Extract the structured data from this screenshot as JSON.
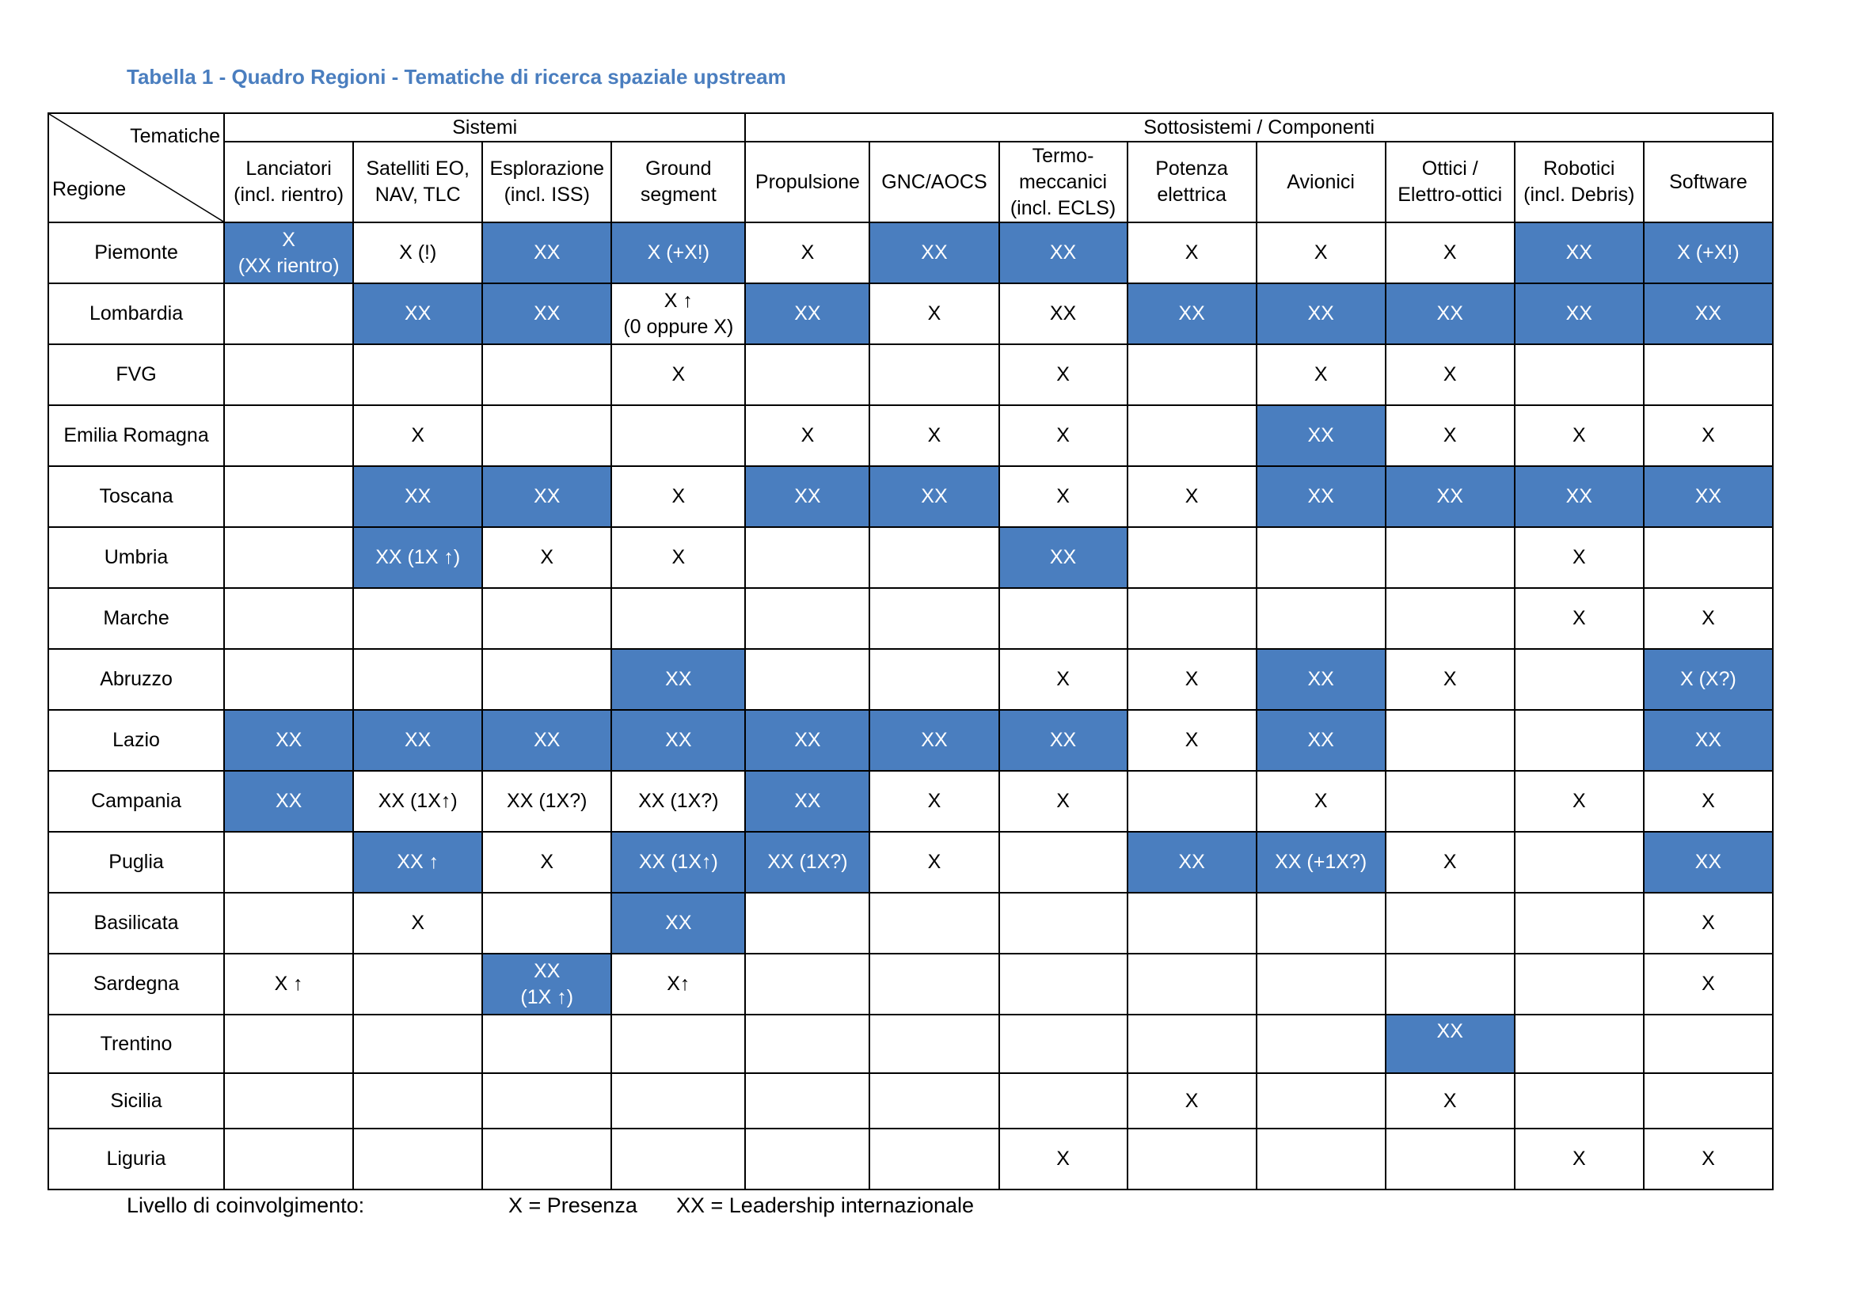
{
  "title": "Tabella 1 - Quadro Regioni - Tematiche di ricerca spaziale upstream",
  "colors": {
    "highlight": "#4a7ebf",
    "title": "#4a7ebf",
    "mark": "#808080"
  },
  "header": {
    "corner_top": "Tematiche",
    "corner_bottom": "Regione",
    "groups": [
      {
        "label": "Sistemi",
        "span": 4
      },
      {
        "label": "Sottosistemi / Componenti",
        "span": 8
      }
    ],
    "columns": [
      "Lanciatori\n(incl. rientro)",
      "Satelliti EO,\nNAV, TLC",
      "Esplorazione\n(incl. ISS)",
      "Ground\nsegment",
      "Propulsione",
      "GNC/AOCS",
      "Termo-\nmeccanici\n(incl. ECLS)",
      "Potenza\nelettrica",
      "Avionici",
      "Ottici /\nElettro-ottici",
      "Robotici\n(incl. Debris)",
      "Software"
    ]
  },
  "rows": [
    {
      "region": "Piemonte",
      "cells": [
        {
          "v": "X\n(XX rientro)",
          "hl": true
        },
        {
          "v": "X (!)",
          "hl": false
        },
        {
          "v": "XX",
          "hl": true
        },
        {
          "v": "X (+X!)",
          "hl": true
        },
        {
          "v": "X",
          "hl": false
        },
        {
          "v": "XX",
          "hl": true
        },
        {
          "v": "XX",
          "hl": true
        },
        {
          "v": "X",
          "hl": false
        },
        {
          "v": "X",
          "hl": false
        },
        {
          "v": "X",
          "hl": false
        },
        {
          "v": "XX",
          "hl": true
        },
        {
          "v": "X (+X!)",
          "hl": true
        }
      ]
    },
    {
      "region": "Lombardia",
      "cells": [
        {
          "v": "",
          "hl": false
        },
        {
          "v": "XX",
          "hl": true
        },
        {
          "v": "XX",
          "hl": true
        },
        {
          "v": "X ↑\n(0 oppure X)",
          "hl": false
        },
        {
          "v": "XX",
          "hl": true
        },
        {
          "v": "X",
          "hl": false
        },
        {
          "v": "XX",
          "hl": false
        },
        {
          "v": "XX",
          "hl": true
        },
        {
          "v": "XX",
          "hl": true
        },
        {
          "v": "XX",
          "hl": true
        },
        {
          "v": "XX",
          "hl": true
        },
        {
          "v": "XX",
          "hl": true
        }
      ]
    },
    {
      "region": "FVG",
      "cells": [
        {
          "v": "",
          "hl": false
        },
        {
          "v": "",
          "hl": false
        },
        {
          "v": "",
          "hl": false
        },
        {
          "v": "X",
          "hl": false
        },
        {
          "v": "",
          "hl": false
        },
        {
          "v": "",
          "hl": false
        },
        {
          "v": "X",
          "hl": false
        },
        {
          "v": "",
          "hl": false
        },
        {
          "v": "X",
          "hl": false
        },
        {
          "v": "X",
          "hl": false
        },
        {
          "v": "",
          "hl": false
        },
        {
          "v": "",
          "hl": false
        }
      ]
    },
    {
      "region": "Emilia Romagna",
      "cells": [
        {
          "v": "",
          "hl": false
        },
        {
          "v": "X",
          "hl": false
        },
        {
          "v": "",
          "hl": false
        },
        {
          "v": "",
          "hl": false
        },
        {
          "v": "X",
          "hl": false
        },
        {
          "v": "X",
          "hl": false
        },
        {
          "v": "X",
          "hl": false
        },
        {
          "v": "",
          "hl": false
        },
        {
          "v": "XX",
          "hl": true
        },
        {
          "v": "X",
          "hl": false
        },
        {
          "v": "X",
          "hl": false
        },
        {
          "v": "X",
          "hl": false
        }
      ]
    },
    {
      "region": "Toscana",
      "cells": [
        {
          "v": "",
          "hl": false
        },
        {
          "v": "XX",
          "hl": true
        },
        {
          "v": "XX",
          "hl": true
        },
        {
          "v": "X",
          "hl": false
        },
        {
          "v": "XX",
          "hl": true
        },
        {
          "v": "XX",
          "hl": true
        },
        {
          "v": "X",
          "hl": false
        },
        {
          "v": "X",
          "hl": false
        },
        {
          "v": "XX",
          "hl": true
        },
        {
          "v": "XX",
          "hl": true
        },
        {
          "v": "XX",
          "hl": true
        },
        {
          "v": "XX",
          "hl": true
        }
      ]
    },
    {
      "region": "Umbria",
      "cells": [
        {
          "v": "",
          "hl": false
        },
        {
          "v": "XX (1X ↑)",
          "hl": true
        },
        {
          "v": "X",
          "hl": false
        },
        {
          "v": "X",
          "hl": false
        },
        {
          "v": "",
          "hl": false
        },
        {
          "v": "",
          "hl": false
        },
        {
          "v": "XX",
          "hl": true
        },
        {
          "v": "",
          "hl": false
        },
        {
          "v": "",
          "hl": false
        },
        {
          "v": "",
          "hl": false
        },
        {
          "v": "X",
          "hl": false
        },
        {
          "v": "",
          "hl": false
        }
      ]
    },
    {
      "region": "Marche",
      "cells": [
        {
          "v": "",
          "hl": false
        },
        {
          "v": "",
          "hl": false
        },
        {
          "v": "",
          "hl": false
        },
        {
          "v": "",
          "hl": false
        },
        {
          "v": "",
          "hl": false
        },
        {
          "v": "",
          "hl": false
        },
        {
          "v": "",
          "hl": false
        },
        {
          "v": "",
          "hl": false
        },
        {
          "v": "",
          "hl": false
        },
        {
          "v": "",
          "hl": false
        },
        {
          "v": "X",
          "hl": false
        },
        {
          "v": "X",
          "hl": false
        }
      ]
    },
    {
      "region": "Abruzzo",
      "cells": [
        {
          "v": "",
          "hl": false
        },
        {
          "v": "",
          "hl": false
        },
        {
          "v": "",
          "hl": false
        },
        {
          "v": "XX",
          "hl": true
        },
        {
          "v": "",
          "hl": false
        },
        {
          "v": "",
          "hl": false
        },
        {
          "v": "X",
          "hl": false
        },
        {
          "v": "X",
          "hl": false
        },
        {
          "v": "XX",
          "hl": true
        },
        {
          "v": "X",
          "hl": false
        },
        {
          "v": "",
          "hl": false
        },
        {
          "v": "X (X?)",
          "hl": true
        }
      ]
    },
    {
      "region": "Lazio",
      "cells": [
        {
          "v": "XX",
          "hl": true
        },
        {
          "v": "XX",
          "hl": true
        },
        {
          "v": "XX",
          "hl": true
        },
        {
          "v": "XX",
          "hl": true
        },
        {
          "v": "XX",
          "hl": true
        },
        {
          "v": "XX",
          "hl": true
        },
        {
          "v": "XX",
          "hl": true
        },
        {
          "v": "X",
          "hl": false
        },
        {
          "v": "XX",
          "hl": true
        },
        {
          "v": "",
          "hl": false
        },
        {
          "v": "",
          "hl": false
        },
        {
          "v": "XX",
          "hl": true
        }
      ]
    },
    {
      "region": "Campania",
      "cells": [
        {
          "v": "XX",
          "hl": true
        },
        {
          "v": "XX (1X↑)",
          "hl": false
        },
        {
          "v": "XX (1X?)",
          "hl": false
        },
        {
          "v": "XX (1X?)",
          "hl": false
        },
        {
          "v": "XX",
          "hl": true
        },
        {
          "v": "X",
          "hl": false
        },
        {
          "v": "X",
          "hl": false
        },
        {
          "v": "",
          "hl": false
        },
        {
          "v": "X",
          "hl": false
        },
        {
          "v": "",
          "hl": false
        },
        {
          "v": "X",
          "hl": false
        },
        {
          "v": "X",
          "hl": false
        }
      ]
    },
    {
      "region": "Puglia",
      "cells": [
        {
          "v": "",
          "hl": false
        },
        {
          "v": "XX ↑",
          "hl": true
        },
        {
          "v": "X",
          "hl": false
        },
        {
          "v": "XX (1X↑)",
          "hl": true
        },
        {
          "v": "XX (1X?)",
          "hl": true
        },
        {
          "v": "X",
          "hl": false
        },
        {
          "v": "",
          "hl": false
        },
        {
          "v": "XX",
          "hl": true
        },
        {
          "v": "XX (+1X?)",
          "hl": true
        },
        {
          "v": "X",
          "hl": false
        },
        {
          "v": "",
          "hl": false
        },
        {
          "v": "XX",
          "hl": true
        }
      ]
    },
    {
      "region": "Basilicata",
      "cells": [
        {
          "v": "",
          "hl": false
        },
        {
          "v": "X",
          "hl": false
        },
        {
          "v": "",
          "hl": false
        },
        {
          "v": "XX",
          "hl": true
        },
        {
          "v": "",
          "hl": false
        },
        {
          "v": "",
          "hl": false
        },
        {
          "v": "",
          "hl": false
        },
        {
          "v": "",
          "hl": false
        },
        {
          "v": "",
          "hl": false
        },
        {
          "v": "",
          "hl": false
        },
        {
          "v": "",
          "hl": false
        },
        {
          "v": "X",
          "hl": false
        }
      ]
    },
    {
      "region": "Sardegna",
      "cells": [
        {
          "v": "X ↑",
          "hl": false
        },
        {
          "v": "",
          "hl": false
        },
        {
          "v": "XX\n(1X ↑)",
          "hl": true
        },
        {
          "v": "X↑",
          "hl": false
        },
        {
          "v": "",
          "hl": false
        },
        {
          "v": "",
          "hl": false
        },
        {
          "v": "",
          "hl": false
        },
        {
          "v": "",
          "hl": false
        },
        {
          "v": "",
          "hl": false
        },
        {
          "v": "",
          "hl": false
        },
        {
          "v": "",
          "hl": false
        },
        {
          "v": "X",
          "hl": false
        }
      ]
    },
    {
      "region": "Trentino",
      "cells": [
        {
          "v": "",
          "hl": false
        },
        {
          "v": "",
          "hl": false
        },
        {
          "v": "",
          "hl": false
        },
        {
          "v": "",
          "hl": false
        },
        {
          "v": "",
          "hl": false
        },
        {
          "v": "",
          "hl": false
        },
        {
          "v": "",
          "hl": false
        },
        {
          "v": "",
          "hl": false
        },
        {
          "v": "",
          "hl": false
        },
        {
          "v": "XX",
          "hl": true,
          "top": true
        },
        {
          "v": "",
          "hl": false
        },
        {
          "v": "",
          "hl": false
        }
      ]
    },
    {
      "region": "Sicilia",
      "cells": [
        {
          "v": "",
          "hl": false
        },
        {
          "v": "",
          "hl": false
        },
        {
          "v": "",
          "hl": false
        },
        {
          "v": "",
          "hl": false
        },
        {
          "v": "",
          "hl": false
        },
        {
          "v": "",
          "hl": false
        },
        {
          "v": "",
          "hl": false
        },
        {
          "v": "X",
          "hl": false
        },
        {
          "v": "",
          "hl": false
        },
        {
          "v": "X",
          "hl": false
        },
        {
          "v": "",
          "hl": false
        },
        {
          "v": "",
          "hl": false
        }
      ]
    },
    {
      "region": "Liguria",
      "cells": [
        {
          "v": "",
          "hl": false
        },
        {
          "v": "",
          "hl": false
        },
        {
          "v": "",
          "hl": false
        },
        {
          "v": "",
          "hl": false
        },
        {
          "v": "",
          "hl": false
        },
        {
          "v": "",
          "hl": false
        },
        {
          "v": "X",
          "hl": false
        },
        {
          "v": "",
          "hl": false
        },
        {
          "v": "",
          "hl": false
        },
        {
          "v": "",
          "hl": false
        },
        {
          "v": "X",
          "hl": false
        },
        {
          "v": "X",
          "hl": false
        }
      ]
    }
  ],
  "legend": {
    "label": "Livello di coinvolgimento:",
    "x_def": "X = Presenza",
    "xx_def": "XX = Leadership internazionale"
  }
}
